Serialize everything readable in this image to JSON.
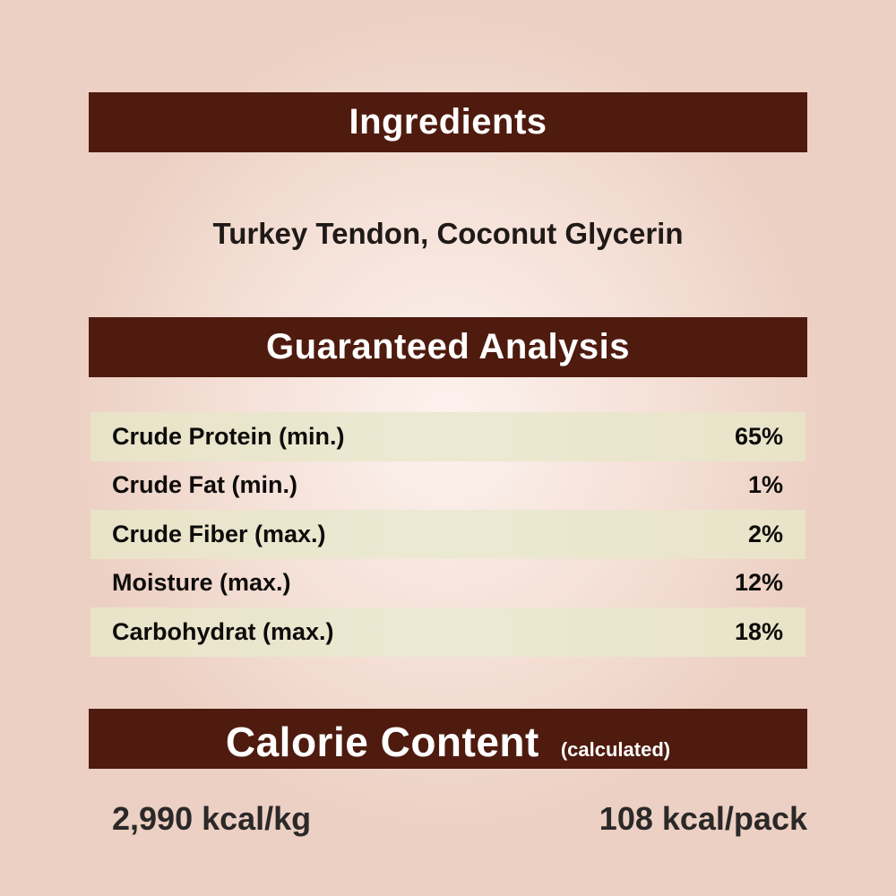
{
  "ingredients": {
    "title": "Ingredients",
    "text": "Turkey Tendon, Coconut Glycerin"
  },
  "analysis": {
    "title": "Guaranteed Analysis",
    "rows": [
      {
        "label": "Crude Protein (min.)",
        "value": "65%"
      },
      {
        "label": "Crude Fat (min.)",
        "value": "1%"
      },
      {
        "label": "Crude Fiber (max.)",
        "value": "2%"
      },
      {
        "label": "Moisture (max.)",
        "value": "12%"
      },
      {
        "label": "Carbohydrat (max.)",
        "value": "18%"
      }
    ]
  },
  "calorie": {
    "title": "Calorie Content",
    "subtitle": "(calculated)",
    "per_kg": "2,990 kcal/kg",
    "per_pack": "108 kcal/pack"
  },
  "colors": {
    "header_bar": "#4f1b0f",
    "row_band": "#e9e3c8"
  }
}
